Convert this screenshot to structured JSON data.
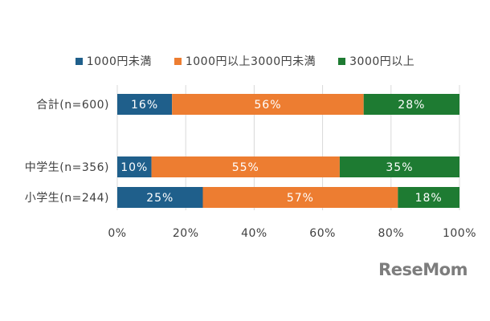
{
  "chart_data": {
    "type": "bar",
    "orientation": "horizontal",
    "stacked": true,
    "categories": [
      "合計(n=600)",
      "中学生(n=356)",
      "小学生(n=244)"
    ],
    "series": [
      {
        "name": "1000円未満",
        "color": "#1f5f8b",
        "values": [
          16,
          10,
          25
        ],
        "labels": [
          "16%",
          "10%",
          "25%"
        ]
      },
      {
        "name": "1000円以上3000円未満",
        "color": "#ed7d31",
        "values": [
          56,
          55,
          57
        ],
        "labels": [
          "56%",
          "55%",
          "57%"
        ]
      },
      {
        "name": "3000円以上",
        "color": "#1e7b32",
        "values": [
          28,
          35,
          18
        ],
        "labels": [
          "28%",
          "35%",
          "18%"
        ]
      }
    ],
    "xlim": [
      0,
      100
    ],
    "xticks": [
      "0%",
      "20%",
      "40%",
      "60%",
      "80%",
      "100%"
    ],
    "legend_position": "top",
    "grid": true
  },
  "watermark": "ReseMom"
}
